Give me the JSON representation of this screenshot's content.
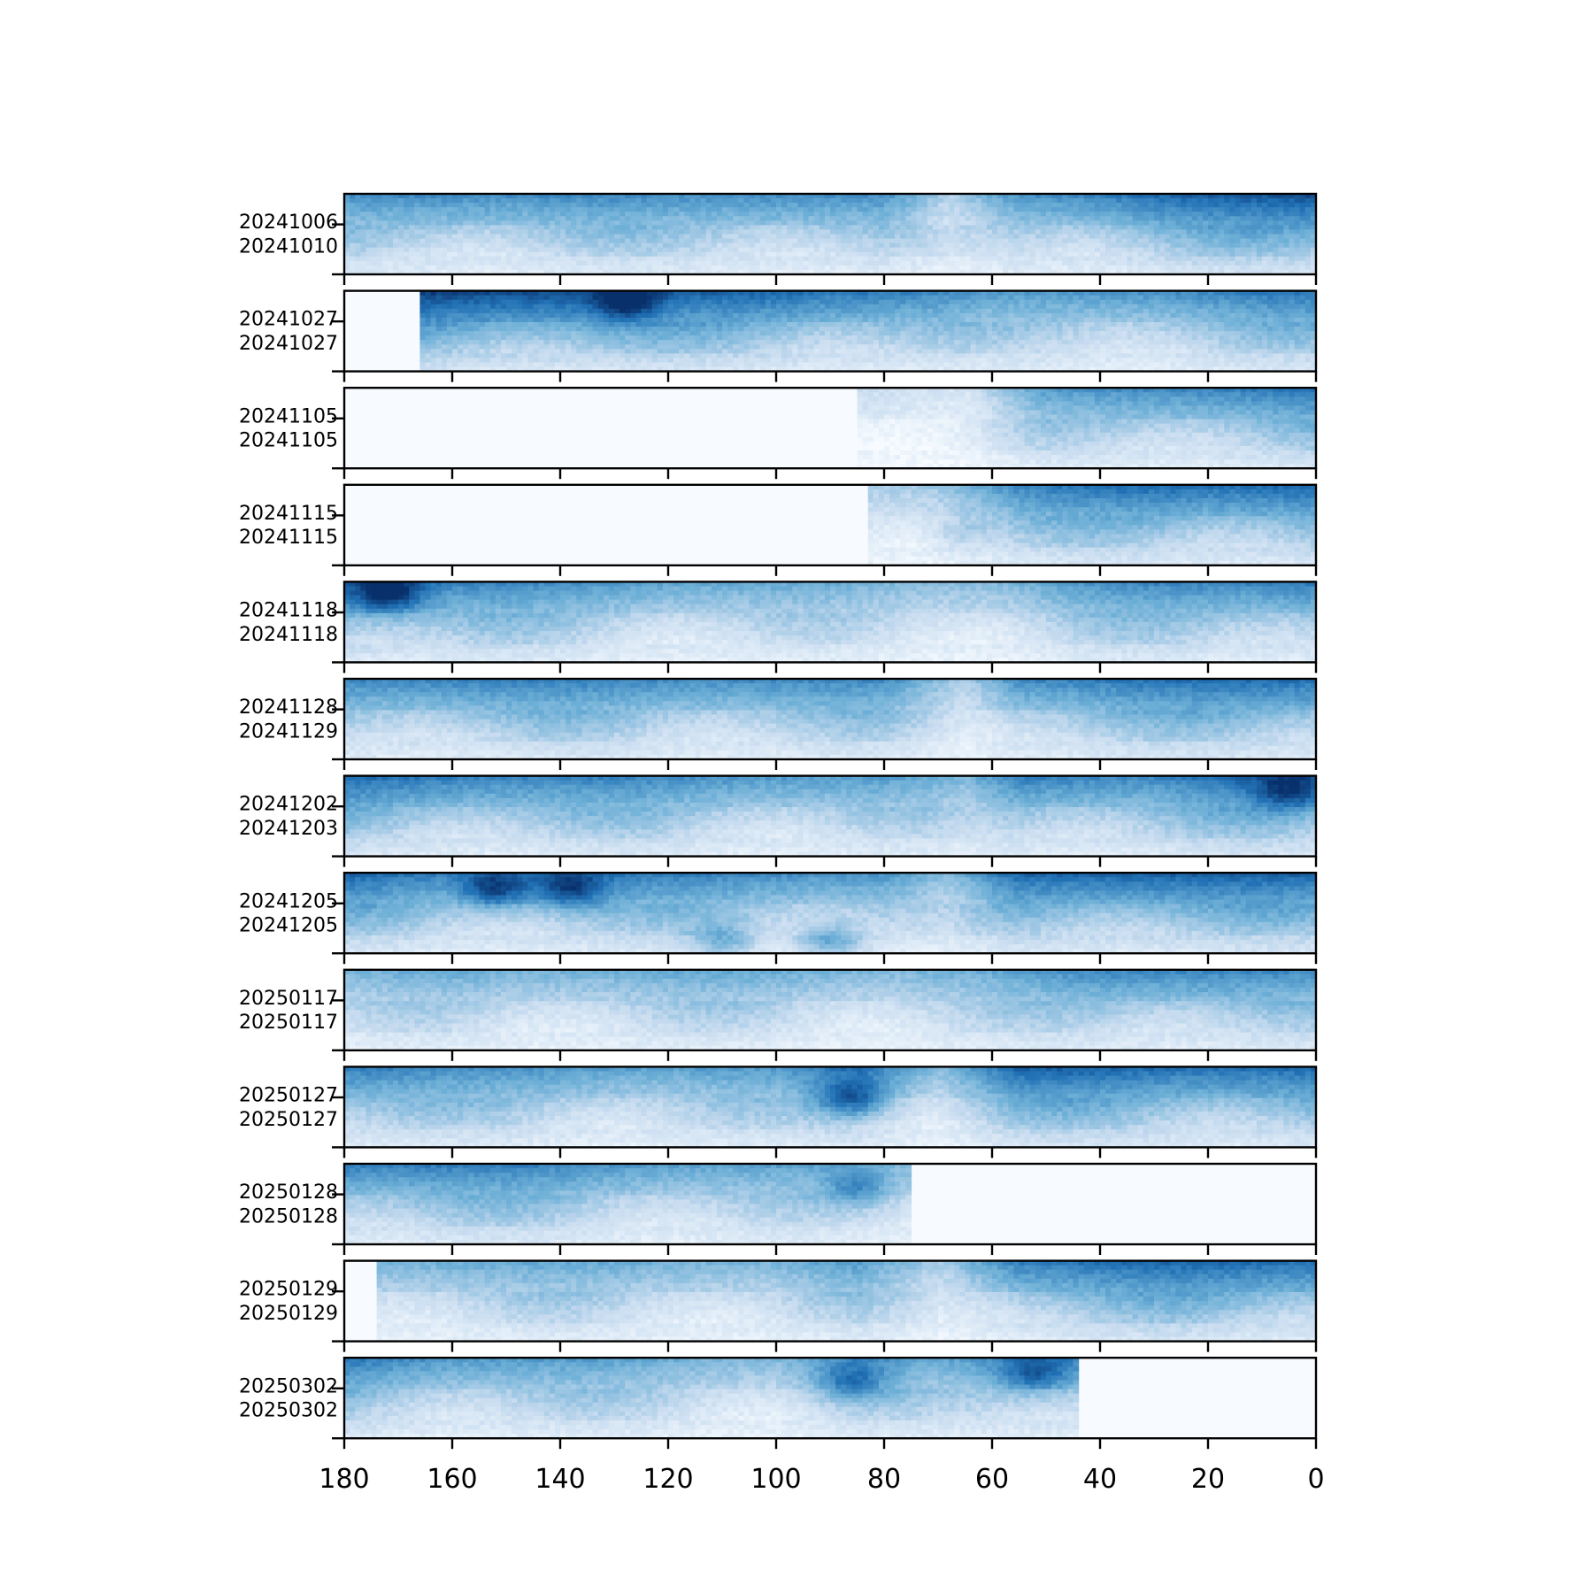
{
  "chart_data": {
    "type": "heatmap",
    "title": "",
    "xlabel": "",
    "ylabel": "",
    "xlim": [
      180,
      0
    ],
    "xticks": [
      "180",
      "160",
      "140",
      "120",
      "100",
      "80",
      "60",
      "40",
      "20",
      "0"
    ],
    "colormap": "Blues",
    "panels": [
      {
        "label_top": "20241006",
        "label_bottom": "20241010",
        "valid_range": [
          180,
          0
        ],
        "profile": [
          [
            180,
            0.55
          ],
          [
            160,
            0.6
          ],
          [
            140,
            0.58
          ],
          [
            120,
            0.55
          ],
          [
            100,
            0.6
          ],
          [
            80,
            0.55
          ],
          [
            68,
            0.25
          ],
          [
            55,
            0.55
          ],
          [
            30,
            0.7
          ],
          [
            10,
            0.75
          ],
          [
            0,
            0.8
          ]
        ],
        "blobs": []
      },
      {
        "label_top": "20241027",
        "label_bottom": "20241027",
        "valid_range": [
          166,
          0
        ],
        "profile": [
          [
            166,
            0.85
          ],
          [
            140,
            0.82
          ],
          [
            120,
            0.72
          ],
          [
            100,
            0.72
          ],
          [
            80,
            0.65
          ],
          [
            60,
            0.5
          ],
          [
            40,
            0.55
          ],
          [
            20,
            0.6
          ],
          [
            0,
            0.65
          ]
        ],
        "blobs": [
          [
            128,
            0.15,
            0.92
          ]
        ]
      },
      {
        "label_top": "20241105",
        "label_bottom": "20241105",
        "valid_range": [
          85,
          0
        ],
        "profile": [
          [
            85,
            0.25
          ],
          [
            65,
            0.15
          ],
          [
            50,
            0.5
          ],
          [
            30,
            0.6
          ],
          [
            0,
            0.65
          ]
        ],
        "blobs": []
      },
      {
        "label_top": "20241115",
        "label_bottom": "20241115",
        "valid_range": [
          83,
          0
        ],
        "profile": [
          [
            83,
            0.3
          ],
          [
            70,
            0.35
          ],
          [
            55,
            0.6
          ],
          [
            30,
            0.7
          ],
          [
            0,
            0.72
          ]
        ],
        "blobs": [
          [
            65,
            0.6,
            0.45
          ]
        ]
      },
      {
        "label_top": "20241118",
        "label_bottom": "20241118",
        "valid_range": [
          180,
          0
        ],
        "profile": [
          [
            180,
            0.75
          ],
          [
            160,
            0.6
          ],
          [
            140,
            0.55
          ],
          [
            120,
            0.5
          ],
          [
            100,
            0.45
          ],
          [
            80,
            0.4
          ],
          [
            60,
            0.4
          ],
          [
            40,
            0.55
          ],
          [
            20,
            0.6
          ],
          [
            0,
            0.65
          ]
        ],
        "blobs": [
          [
            172,
            0.15,
            0.95
          ]
        ]
      },
      {
        "label_top": "20241128",
        "label_bottom": "20241129",
        "valid_range": [
          180,
          0
        ],
        "profile": [
          [
            180,
            0.6
          ],
          [
            160,
            0.62
          ],
          [
            140,
            0.6
          ],
          [
            120,
            0.58
          ],
          [
            100,
            0.6
          ],
          [
            80,
            0.55
          ],
          [
            65,
            0.3
          ],
          [
            55,
            0.6
          ],
          [
            30,
            0.65
          ],
          [
            0,
            0.7
          ]
        ],
        "blobs": []
      },
      {
        "label_top": "20241202",
        "label_bottom": "20241203",
        "valid_range": [
          180,
          0
        ],
        "profile": [
          [
            180,
            0.7
          ],
          [
            160,
            0.65
          ],
          [
            140,
            0.6
          ],
          [
            120,
            0.58
          ],
          [
            100,
            0.55
          ],
          [
            80,
            0.5
          ],
          [
            65,
            0.4
          ],
          [
            55,
            0.65
          ],
          [
            30,
            0.6
          ],
          [
            5,
            0.75
          ],
          [
            0,
            0.7
          ]
        ],
        "blobs": [
          [
            5,
            0.2,
            0.85
          ]
        ]
      },
      {
        "label_top": "20241205",
        "label_bottom": "20241205",
        "valid_range": [
          180,
          0
        ],
        "profile": [
          [
            180,
            0.7
          ],
          [
            160,
            0.6
          ],
          [
            140,
            0.65
          ],
          [
            120,
            0.6
          ],
          [
            100,
            0.58
          ],
          [
            80,
            0.55
          ],
          [
            68,
            0.35
          ],
          [
            55,
            0.7
          ],
          [
            30,
            0.75
          ],
          [
            0,
            0.7
          ]
        ],
        "blobs": [
          [
            152,
            0.2,
            0.85
          ],
          [
            138,
            0.2,
            0.85
          ],
          [
            90,
            0.85,
            0.75
          ],
          [
            110,
            0.85,
            0.7
          ]
        ]
      },
      {
        "label_top": "20250117",
        "label_bottom": "20250117",
        "valid_range": [
          180,
          0
        ],
        "profile": [
          [
            180,
            0.4
          ],
          [
            160,
            0.45
          ],
          [
            140,
            0.45
          ],
          [
            120,
            0.45
          ],
          [
            100,
            0.45
          ],
          [
            80,
            0.42
          ],
          [
            60,
            0.45
          ],
          [
            40,
            0.6
          ],
          [
            20,
            0.62
          ],
          [
            0,
            0.55
          ]
        ],
        "blobs": []
      },
      {
        "label_top": "20250127",
        "label_bottom": "20250127",
        "valid_range": [
          180,
          0
        ],
        "profile": [
          [
            180,
            0.65
          ],
          [
            160,
            0.55
          ],
          [
            140,
            0.55
          ],
          [
            120,
            0.5
          ],
          [
            100,
            0.5
          ],
          [
            85,
            0.7
          ],
          [
            70,
            0.4
          ],
          [
            55,
            0.72
          ],
          [
            30,
            0.7
          ],
          [
            0,
            0.7
          ]
        ],
        "blobs": [
          [
            86,
            0.4,
            0.85
          ]
        ]
      },
      {
        "label_top": "20250128",
        "label_bottom": "20250128",
        "valid_range": [
          180,
          75
        ],
        "profile": [
          [
            180,
            0.65
          ],
          [
            160,
            0.62
          ],
          [
            140,
            0.58
          ],
          [
            120,
            0.52
          ],
          [
            100,
            0.48
          ],
          [
            80,
            0.4
          ],
          [
            75,
            0.4
          ]
        ],
        "blobs": [
          [
            85,
            0.3,
            0.6
          ]
        ]
      },
      {
        "label_top": "20250129",
        "label_bottom": "20250129",
        "valid_range": [
          174,
          0
        ],
        "profile": [
          [
            174,
            0.45
          ],
          [
            150,
            0.45
          ],
          [
            120,
            0.45
          ],
          [
            100,
            0.42
          ],
          [
            85,
            0.5
          ],
          [
            70,
            0.3
          ],
          [
            55,
            0.65
          ],
          [
            30,
            0.7
          ],
          [
            0,
            0.7
          ]
        ],
        "blobs": []
      },
      {
        "label_top": "20250302",
        "label_bottom": "20250302",
        "valid_range": [
          180,
          44
        ],
        "profile": [
          [
            180,
            0.65
          ],
          [
            160,
            0.55
          ],
          [
            140,
            0.5
          ],
          [
            120,
            0.45
          ],
          [
            100,
            0.42
          ],
          [
            85,
            0.55
          ],
          [
            70,
            0.45
          ],
          [
            55,
            0.6
          ],
          [
            44,
            0.6
          ]
        ],
        "blobs": [
          [
            86,
            0.3,
            0.7
          ],
          [
            52,
            0.2,
            0.75
          ]
        ]
      }
    ]
  }
}
